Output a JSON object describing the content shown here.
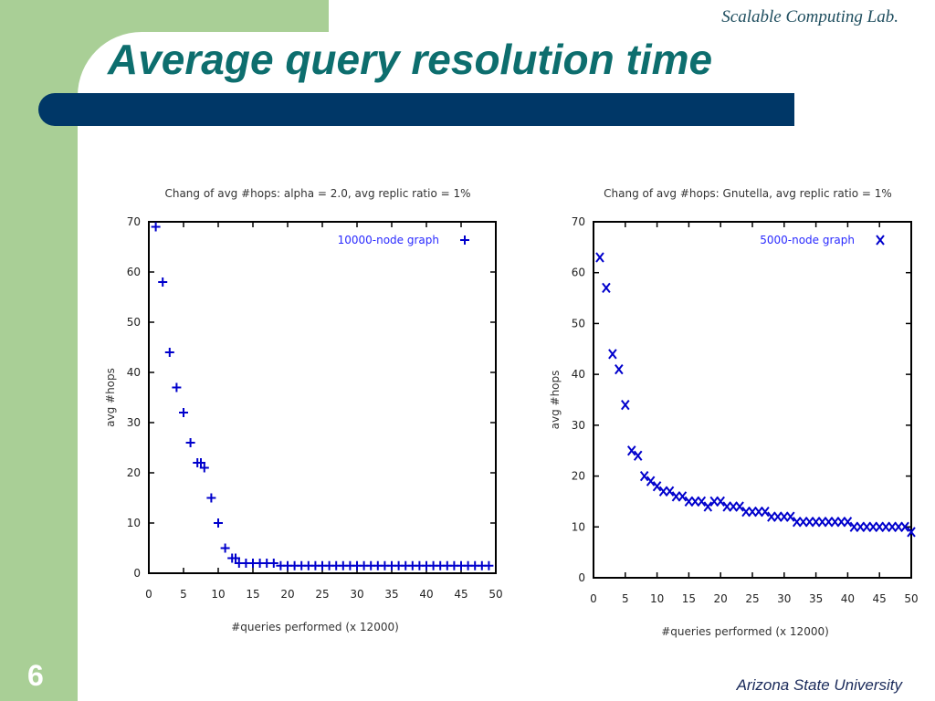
{
  "header": {
    "lab": "Scalable Computing Lab.",
    "title": "Average query resolution time"
  },
  "footer": {
    "page_number": "6",
    "university": "Arizona State University"
  },
  "colors": {
    "green": "#a9cf96",
    "navy": "#003767",
    "title": "#0d6e6e",
    "marker": "#0000cc"
  },
  "chart_data": [
    {
      "type": "scatter",
      "title": "Chang of avg #hops: alpha = 2.0, avg replic ratio = 1%",
      "xlabel": "#queries performed (x 12000)",
      "ylabel": "avg #hops",
      "xlim": [
        0,
        50
      ],
      "ylim": [
        0,
        70
      ],
      "xticks": [
        "0",
        "5",
        "10",
        "15",
        "20",
        "25",
        "30",
        "35",
        "40",
        "45",
        "50"
      ],
      "yticks": [
        "0",
        "10",
        "20",
        "30",
        "40",
        "50",
        "60",
        "70"
      ],
      "legend_position": "top-right",
      "series": [
        {
          "name": "10000-node graph",
          "marker": "+",
          "x": [
            1,
            2,
            3,
            4,
            5,
            6,
            7,
            7.5,
            8,
            9,
            10,
            11,
            12,
            12.5,
            13,
            14,
            15,
            16,
            17,
            18,
            19,
            20,
            21,
            22,
            23,
            24,
            25,
            26,
            27,
            28,
            29,
            30,
            31,
            32,
            33,
            34,
            35,
            36,
            37,
            38,
            39,
            40,
            41,
            42,
            43,
            44,
            45,
            46,
            47,
            48,
            49
          ],
          "y": [
            69,
            58,
            44,
            37,
            32,
            26,
            22,
            22,
            21,
            15,
            10,
            5,
            3,
            3,
            2,
            2,
            2,
            2,
            2,
            2,
            1.5,
            1.5,
            1.5,
            1.5,
            1.5,
            1.5,
            1.5,
            1.5,
            1.5,
            1.5,
            1.5,
            1.5,
            1.5,
            1.5,
            1.5,
            1.5,
            1.5,
            1.5,
            1.5,
            1.5,
            1.5,
            1.5,
            1.5,
            1.5,
            1.5,
            1.5,
            1.5,
            1.5,
            1.5,
            1.5,
            1.5
          ]
        }
      ]
    },
    {
      "type": "scatter",
      "title": "Chang of avg #hops: Gnutella, avg replic ratio = 1%",
      "xlabel": "#queries performed (x 12000)",
      "ylabel": "avg #hops",
      "xlim": [
        0,
        50
      ],
      "ylim": [
        0,
        70
      ],
      "xticks": [
        "0",
        "5",
        "10",
        "15",
        "20",
        "25",
        "30",
        "35",
        "40",
        "45",
        "50"
      ],
      "yticks": [
        "0",
        "10",
        "20",
        "30",
        "40",
        "50",
        "60",
        "70"
      ],
      "legend_position": "top-right",
      "series": [
        {
          "name": "5000-node graph",
          "marker": "x",
          "x": [
            1,
            2,
            3,
            4,
            5,
            6,
            7,
            8,
            9,
            10,
            11,
            12,
            13,
            14,
            15,
            16,
            17,
            18,
            19,
            20,
            21,
            22,
            23,
            24,
            25,
            26,
            27,
            28,
            29,
            30,
            31,
            32,
            33,
            34,
            35,
            36,
            37,
            38,
            39,
            40,
            41,
            42,
            43,
            44,
            45,
            46,
            47,
            48,
            49,
            50
          ],
          "y": [
            63,
            57,
            44,
            41,
            34,
            25,
            24,
            20,
            19,
            18,
            17,
            17,
            16,
            16,
            15,
            15,
            15,
            14,
            15,
            15,
            14,
            14,
            14,
            13,
            13,
            13,
            13,
            12,
            12,
            12,
            12,
            11,
            11,
            11,
            11,
            11,
            11,
            11,
            11,
            11,
            10,
            10,
            10,
            10,
            10,
            10,
            10,
            10,
            10,
            9
          ]
        }
      ]
    }
  ]
}
